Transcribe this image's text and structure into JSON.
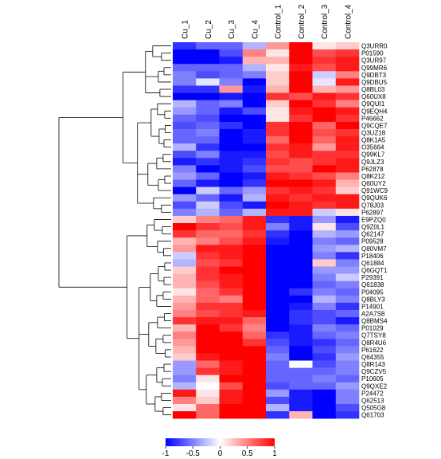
{
  "chart_data": {
    "type": "heatmap",
    "title": "",
    "xlabel": "",
    "ylabel": "",
    "columns": [
      "Cu_1",
      "Cu_2",
      "Cu_3",
      "Cu_4",
      "Control_1",
      "Control_2",
      "Control_3",
      "Control_4"
    ],
    "rows": [
      "Q3URR0",
      "P01590",
      "Q3UR97",
      "Q99MR6",
      "Q9DBT3",
      "Q9DBU5",
      "Q8BL03",
      "Q60UX8",
      "Q9QUI1",
      "Q9EQH4",
      "P46662",
      "Q9CQE7",
      "Q3UZ18",
      "Q8K1A5",
      "O35664",
      "Q99KL7",
      "Q9JLZ3",
      "P62878",
      "Q8K212",
      "Q60UY2",
      "Q91WC9",
      "Q9QUK6",
      "Q78J03",
      "P62897",
      "E9PZQ0",
      "Q9Z0L1",
      "Q62147",
      "P09528",
      "Q80VM7",
      "P18406",
      "Q61884",
      "Q6GQT1",
      "P29391",
      "Q61838",
      "P04095",
      "Q8BLY3",
      "P14901",
      "A2A7S8",
      "Q8BMS4",
      "P01029",
      "Q7TSY8",
      "Q8R4U6",
      "P61622",
      "Q64355",
      "Q8R143",
      "Q9CZV5",
      "P10605",
      "Q9QXE2",
      "P24472",
      "Q62513",
      "Q505G8",
      "Q61703"
    ],
    "values": [
      [
        -0.8,
        -0.6,
        -0.6,
        -0.3,
        0.4,
        1.0,
        0.1,
        0.2
      ],
      [
        -1.0,
        -1.0,
        -0.7,
        0.5,
        0.1,
        1.0,
        0.7,
        0.8
      ],
      [
        -1.0,
        -1.0,
        -0.9,
        0.3,
        0.3,
        1.0,
        0.8,
        0.9
      ],
      [
        -0.6,
        -0.6,
        -0.6,
        -0.3,
        0.1,
        0.9,
        0.7,
        0.9
      ],
      [
        -0.5,
        -0.7,
        -0.6,
        -0.5,
        0.2,
        1.0,
        -0.2,
        0.5
      ],
      [
        -0.5,
        -0.1,
        -0.5,
        -1.0,
        0.2,
        1.0,
        -0.1,
        0.9
      ],
      [
        -0.8,
        -0.8,
        0.4,
        -0.9,
        0.3,
        1.0,
        0.3,
        0.4
      ],
      [
        -1.0,
        -1.0,
        -0.9,
        -1.0,
        0.8,
        0.7,
        0.9,
        0.8
      ],
      [
        -0.3,
        -0.6,
        -0.5,
        -1.0,
        0.2,
        1.0,
        0.8,
        0.5
      ],
      [
        -0.4,
        -0.6,
        -0.9,
        -0.7,
        0.1,
        0.9,
        1.0,
        0.9
      ],
      [
        -0.6,
        -0.7,
        -1.0,
        -1.0,
        0.1,
        0.8,
        1.0,
        0.8
      ],
      [
        -0.7,
        -0.6,
        -0.8,
        -1.0,
        0.8,
        1.0,
        0.6,
        1.0
      ],
      [
        -0.6,
        -0.5,
        -1.0,
        -0.9,
        0.8,
        1.0,
        0.7,
        0.8
      ],
      [
        -0.6,
        -0.6,
        -1.0,
        -0.9,
        0.6,
        1.0,
        0.6,
        0.9
      ],
      [
        -0.3,
        -0.8,
        -1.0,
        -1.0,
        0.8,
        0.9,
        0.4,
        0.9
      ],
      [
        -0.7,
        -0.5,
        -0.9,
        -0.9,
        0.7,
        0.9,
        0.8,
        0.8
      ],
      [
        -0.9,
        -0.8,
        -0.9,
        -0.8,
        0.8,
        0.7,
        0.8,
        0.9
      ],
      [
        -0.5,
        -1.0,
        -0.9,
        -0.7,
        0.7,
        0.7,
        1.0,
        0.9
      ],
      [
        -0.4,
        -0.6,
        -1.0,
        -0.9,
        0.9,
        0.8,
        0.7,
        0.5
      ],
      [
        -0.6,
        -0.9,
        -1.0,
        -0.8,
        1.0,
        1.0,
        0.9,
        0.3
      ],
      [
        -1.0,
        -0.2,
        -0.6,
        -0.4,
        0.8,
        0.9,
        0.8,
        0.2
      ],
      [
        -0.4,
        -0.6,
        -0.9,
        -0.3,
        0.9,
        0.8,
        0.9,
        0.9
      ],
      [
        -0.7,
        -0.2,
        -0.7,
        -0.9,
        1.0,
        0.9,
        0.8,
        0.9
      ],
      [
        -0.5,
        -0.3,
        -0.6,
        -0.3,
        0.9,
        0.9,
        -0.2,
        0.1
      ],
      [
        0.2,
        0.5,
        0.6,
        0.9,
        -0.8,
        -0.9,
        -0.4,
        -0.9
      ],
      [
        1.0,
        0.8,
        0.7,
        0.9,
        -0.5,
        -0.9,
        0.1,
        -0.7
      ],
      [
        0.8,
        0.6,
        0.6,
        0.8,
        -0.8,
        -1.0,
        -0.3,
        -0.4
      ],
      [
        0.3,
        0.5,
        0.7,
        0.9,
        -0.9,
        -1.0,
        -0.5,
        -0.6
      ],
      [
        0.4,
        0.9,
        0.9,
        1.0,
        -1.0,
        -1.0,
        -0.4,
        -0.3
      ],
      [
        -0.2,
        0.8,
        0.9,
        1.0,
        -1.0,
        -1.0,
        -0.5,
        -0.8
      ],
      [
        -0.3,
        0.7,
        0.8,
        1.0,
        -1.0,
        -1.0,
        0.2,
        -0.5
      ],
      [
        0.2,
        0.8,
        1.0,
        1.0,
        -1.0,
        -1.0,
        -0.4,
        -0.4
      ],
      [
        0.3,
        0.8,
        0.9,
        1.0,
        -1.0,
        -1.0,
        -0.5,
        -0.2
      ],
      [
        0.3,
        0.7,
        0.9,
        1.0,
        -1.0,
        -1.0,
        -0.6,
        -0.5
      ],
      [
        0.1,
        0.6,
        0.8,
        1.0,
        -1.0,
        -0.8,
        -0.5,
        -0.6
      ],
      [
        0.3,
        0.6,
        0.5,
        1.0,
        -1.0,
        -1.0,
        -0.3,
        -0.5
      ],
      [
        0.4,
        0.8,
        0.8,
        1.0,
        -1.0,
        -0.9,
        -0.5,
        -0.8
      ],
      [
        0.5,
        0.7,
        0.8,
        0.9,
        -1.0,
        -0.8,
        -0.7,
        -0.6
      ],
      [
        0.8,
        0.9,
        0.9,
        0.6,
        -1.0,
        -0.8,
        -0.7,
        -0.9
      ],
      [
        0.3,
        1.0,
        0.8,
        0.5,
        -1.0,
        -0.9,
        -0.5,
        -0.6
      ],
      [
        0.5,
        1.0,
        1.0,
        0.6,
        -0.8,
        -0.9,
        -0.6,
        -0.5
      ],
      [
        0.4,
        1.0,
        1.0,
        0.8,
        -0.7,
        -0.9,
        -0.8,
        -0.6
      ],
      [
        0.3,
        1.0,
        1.0,
        1.0,
        -0.6,
        -1.0,
        -0.7,
        -0.5
      ],
      [
        0.2,
        0.9,
        1.0,
        1.0,
        -0.5,
        -1.0,
        -0.8,
        -0.4
      ],
      [
        -0.4,
        0.6,
        0.9,
        1.0,
        -0.6,
        0.0,
        -0.7,
        -0.5
      ],
      [
        -0.4,
        0.8,
        0.9,
        1.0,
        -0.6,
        -0.6,
        -0.6,
        -0.5
      ],
      [
        -0.5,
        0.1,
        1.0,
        1.0,
        -0.6,
        -0.6,
        -0.5,
        -0.6
      ],
      [
        -0.3,
        0.0,
        0.7,
        1.0,
        -0.7,
        -0.6,
        -0.6,
        -0.4
      ],
      [
        0.9,
        0.1,
        0.9,
        1.0,
        -0.4,
        -0.9,
        -1.0,
        -0.5
      ],
      [
        0.5,
        0.2,
        0.9,
        1.0,
        -0.7,
        -0.9,
        -1.0,
        -0.5
      ],
      [
        0.1,
        0.6,
        1.0,
        1.0,
        -0.3,
        -0.9,
        -1.0,
        -0.7
      ],
      [
        1.0,
        0.6,
        1.0,
        1.0,
        -0.8,
        0.3,
        -1.0,
        -0.8
      ]
    ],
    "color_scale": {
      "min": -1,
      "max": 1,
      "low_color": "#0000ff",
      "mid_color": "#ffffff",
      "high_color": "#ff0000",
      "ticks": [
        -1,
        -0.5,
        0,
        0.5,
        1
      ],
      "tick_labels": [
        "-1",
        "-0.5",
        "0",
        "0.5",
        "1"
      ]
    },
    "dendrogram": "rows",
    "legend_placement": "bottom"
  }
}
